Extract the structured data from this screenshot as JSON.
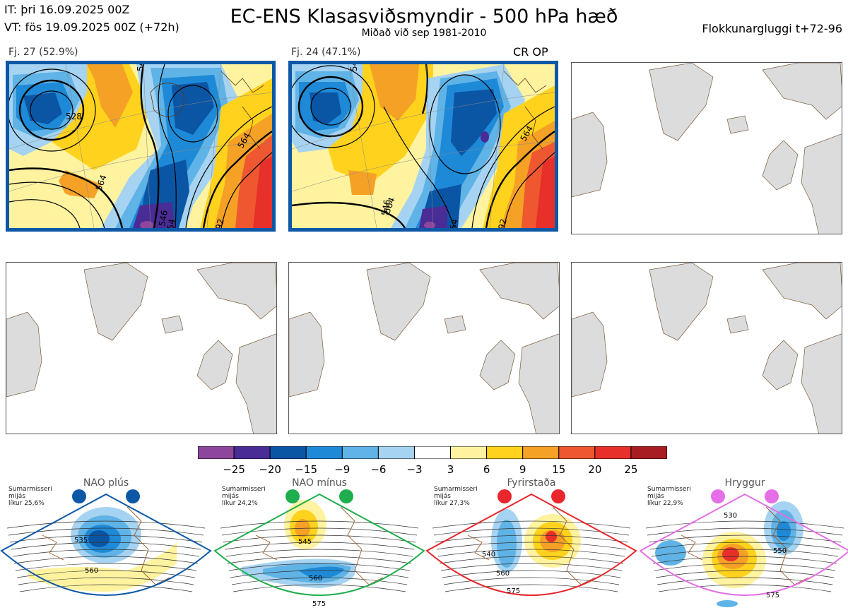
{
  "header": {
    "it_line": "IT: þri 16.09.2025 00Z",
    "vt_line": "VT: fös 19.09.2025 00Z  (+72h)",
    "title": "EC-ENS Klasasviðsmyndir - 500 hPa hæð",
    "subtitle": "Miðað við sep 1981-2010",
    "window": "Flokkunargluggi t+72-96"
  },
  "clusters": [
    {
      "label": "Fj. 27 (52.9%)",
      "members": 27,
      "percent": 52.9,
      "highlighted": true,
      "contours": [
        "546",
        "564",
        "564",
        "546",
        "528",
        "54",
        "92"
      ]
    },
    {
      "label": "Fj. 24 (47.1%)",
      "members": 24,
      "percent": 47.1,
      "highlighted": true,
      "flag": "CR OP",
      "contours": [
        "546",
        "546",
        "564",
        "564",
        "54",
        "92"
      ]
    }
  ],
  "empty_panels": 4,
  "colorbar": {
    "ticks": [
      "−25",
      "−20",
      "−15",
      "−9",
      "−6",
      "−3",
      "3",
      "6",
      "9",
      "15",
      "20",
      "25"
    ],
    "colors": [
      "#8d469b",
      "#4a2c96",
      "#0b55a5",
      "#1e8ad7",
      "#5fb3e6",
      "#a6d3f1",
      "#ffffff",
      "#fff3a0",
      "#ffd21d",
      "#f5a126",
      "#ee5730",
      "#e7302a",
      "#a81d22"
    ],
    "steps": [
      -25,
      -20,
      -15,
      -9,
      -6,
      -3,
      3,
      6,
      9,
      15,
      20,
      25
    ]
  },
  "regimes": [
    {
      "name": "NAO plús",
      "season": "Sumarmisseri",
      "measure": "mijás",
      "likelihood": "líkur 25,6%",
      "color": "#0d58a6",
      "contours": [
        "535",
        "560"
      ]
    },
    {
      "name": "NAO mínus",
      "season": "Sumarmisseri",
      "measure": "mijás",
      "likelihood": "líkur 24,2%",
      "color": "#1fae4d",
      "contours": [
        "545",
        "560",
        "575"
      ]
    },
    {
      "name": "Fyrirstaða",
      "season": "Sumarmisseri",
      "measure": "mijás",
      "likelihood": "líkur 27,3%",
      "color": "#e8262b",
      "contours": [
        "540",
        "560",
        "575"
      ]
    },
    {
      "name": "Hryggur",
      "season": "Sumarmisseri",
      "measure": "mijás",
      "likelihood": "líkur 22,9%",
      "color": "#e46fe6",
      "contours": [
        "530",
        "550",
        "575"
      ]
    }
  ]
}
